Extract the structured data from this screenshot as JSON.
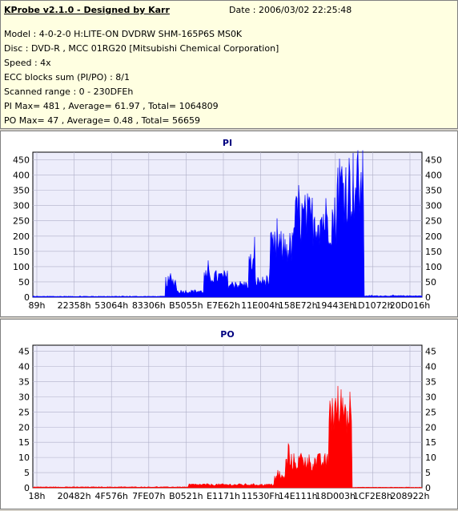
{
  "header": {
    "title": "KProbe v2.1.0 - Designed by Karr",
    "date": "Date : 2006/03/02 22:25:48",
    "lines": [
      "Model : 4-0-2-0 H:LITE-ON DVDRW SHM-165P6S MS0K",
      "Disc : DVD-R , MCC 01RG20   [Mitsubishi Chemical Corporation]",
      "Speed : 4x",
      "ECC blocks sum (PI/PO) : 8/1",
      "Scanned range : 0 - 230DFEh",
      "PI Max= 481 , Average= 61.97 , Total= 1064809",
      "PO Max= 47 , Average= 0.48 , Total= 56659"
    ]
  },
  "colors": {
    "pi": "#0000ff",
    "po": "#ff0000",
    "plot_bg": "#ededfb",
    "grid": "#b0b0c8"
  },
  "chart_data": [
    {
      "type": "area",
      "title": "PI",
      "ylim": [
        0,
        475
      ],
      "yticks": [
        0,
        50,
        100,
        150,
        200,
        250,
        300,
        350,
        400,
        450
      ],
      "xtick_labels": [
        "89h",
        "22358h",
        "53064h",
        "83306h",
        "B5055h",
        "E7E62h",
        "11E004h",
        "158E72h",
        "19443Eh",
        "1D1072h",
        "20D016h"
      ],
      "segments": [
        {
          "x": [
            0.0,
            0.34
          ],
          "y": 3
        },
        {
          "x": [
            0.34,
            0.37
          ],
          "y": 60
        },
        {
          "x": [
            0.37,
            0.44
          ],
          "y": 22
        },
        {
          "x": [
            0.44,
            0.5
          ],
          "y": 78
        },
        {
          "x": [
            0.5,
            0.555
          ],
          "y": 48
        },
        {
          "x": [
            0.555,
            0.57
          ],
          "y": 130
        },
        {
          "x": [
            0.57,
            0.61
          ],
          "y": 60
        },
        {
          "x": [
            0.61,
            0.67
          ],
          "y": 190
        },
        {
          "x": [
            0.67,
            0.78
          ],
          "y": 300
        },
        {
          "x": [
            0.78,
            0.85
          ],
          "y": 430
        },
        {
          "x": [
            0.85,
            1.0
          ],
          "y": 5
        }
      ],
      "max": 481
    },
    {
      "type": "area",
      "title": "PO",
      "ylim": [
        0,
        47
      ],
      "yticks": [
        0,
        5,
        10,
        15,
        20,
        25,
        30,
        35,
        40,
        45
      ],
      "xtick_labels": [
        "18h",
        "20482h",
        "4F576h",
        "7FE07h",
        "B0521h",
        "E1171h",
        "11530Fh",
        "14E111h",
        "18D003h",
        "1CF2E8h",
        "208922h"
      ],
      "segments": [
        {
          "x": [
            0.0,
            0.4
          ],
          "y": 0.3
        },
        {
          "x": [
            0.4,
            0.62
          ],
          "y": 1.2
        },
        {
          "x": [
            0.62,
            0.65
          ],
          "y": 4
        },
        {
          "x": [
            0.65,
            0.76
          ],
          "y": 10
        },
        {
          "x": [
            0.76,
            0.82
          ],
          "y": 30
        },
        {
          "x": [
            0.82,
            1.0
          ],
          "y": 0.2
        }
      ],
      "max": 47
    }
  ]
}
